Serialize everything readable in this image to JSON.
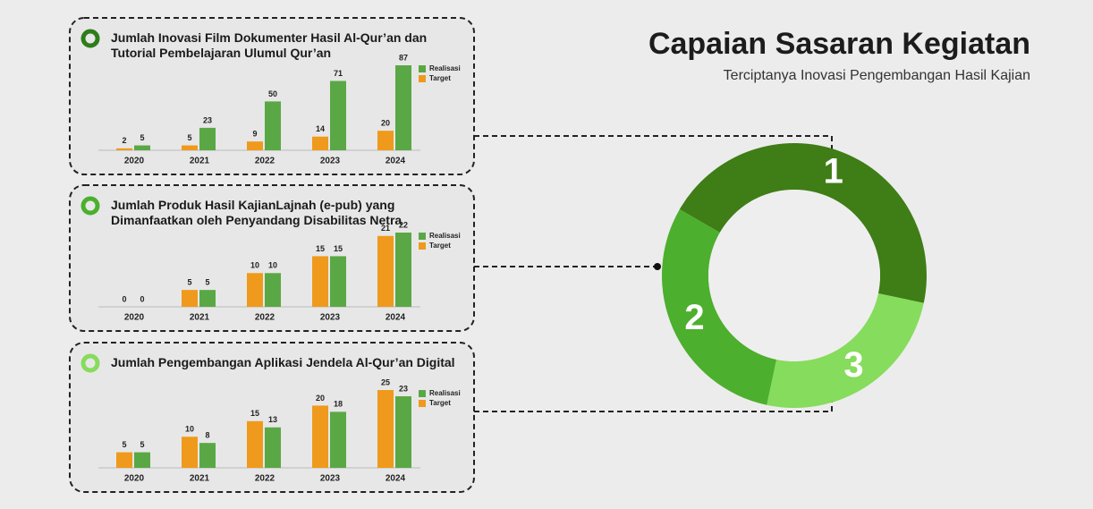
{
  "header": {
    "title": "Capaian Sasaran Kegiatan",
    "subtitle": "Terciptanya Inovasi Pengembangan Hasil Kajian"
  },
  "chart_data": [
    {
      "type": "bar",
      "title": "Jumlah Inovasi Film Dokumenter Hasil Al-Qur’an dan Tutorial Pembelajaran Ulumul Qur’an",
      "categories": [
        "2020",
        "2021",
        "2022",
        "2023",
        "2024"
      ],
      "series": [
        {
          "name": "Realisasi",
          "color": "#5aa845",
          "values": [
            5,
            23,
            50,
            71,
            87
          ]
        },
        {
          "name": "Target",
          "color": "#ef9a1c",
          "values": [
            2,
            5,
            9,
            14,
            20
          ]
        }
      ]
    },
    {
      "type": "bar",
      "title": "Jumlah Produk Hasil KajianLajnah (e-pub) yang Dimanfaatkan oleh Penyandang Disabilitas Netra",
      "categories": [
        "2020",
        "2021",
        "2022",
        "2023",
        "2024"
      ],
      "series": [
        {
          "name": "Realisasi",
          "color": "#5aa845",
          "values": [
            0,
            5,
            10,
            15,
            22
          ]
        },
        {
          "name": "Target",
          "color": "#ef9a1c",
          "values": [
            0,
            5,
            10,
            15,
            21
          ]
        }
      ]
    },
    {
      "type": "bar",
      "title": "Jumlah Pengembangan Aplikasi Jendela Al-Qur’an Digital",
      "categories": [
        "2020",
        "2021",
        "2022",
        "2023",
        "2024"
      ],
      "series": [
        {
          "name": "Realisasi",
          "color": "#5aa845",
          "values": [
            5,
            8,
            13,
            18,
            23
          ]
        },
        {
          "name": "Target",
          "color": "#ef9a1c",
          "values": [
            5,
            10,
            15,
            20,
            25
          ]
        }
      ]
    },
    {
      "type": "pie",
      "categories": [
        "1",
        "3",
        "2"
      ],
      "values": [
        45,
        25,
        30
      ],
      "colors": [
        "#3f7d16",
        "#86dc5c",
        "#4caf2d"
      ]
    }
  ]
}
